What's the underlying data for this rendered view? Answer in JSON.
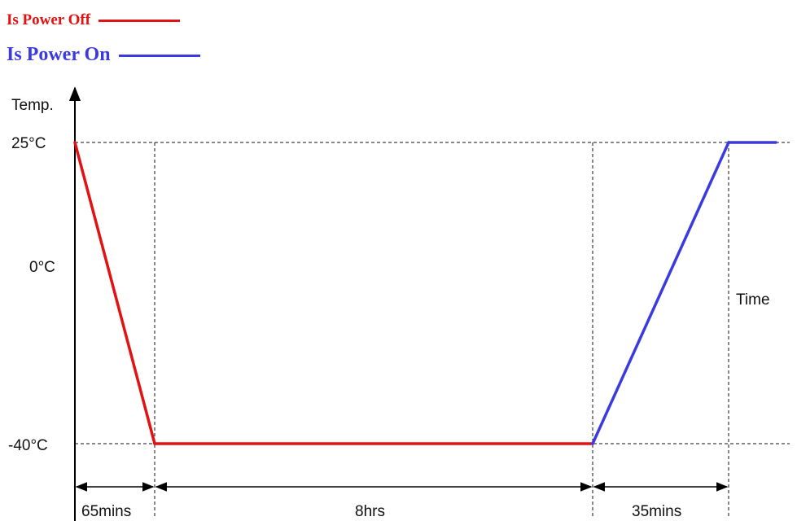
{
  "chart_data": {
    "type": "line",
    "y_label": "Temp.",
    "x_label": "Time",
    "y_ticks": [
      "25°C",
      "0°C",
      "-40°C"
    ],
    "series": [
      {
        "name": "Is Power Off",
        "color": "#e31212",
        "points": [
          {
            "t_min": 0,
            "temp_c": 25
          },
          {
            "t_min": 65,
            "temp_c": -40
          },
          {
            "t_min": 545,
            "temp_c": -40
          }
        ]
      },
      {
        "name": "Is Power On",
        "color": "#3a3ae0",
        "points": [
          {
            "t_min": 545,
            "temp_c": -40
          },
          {
            "t_min": 580,
            "temp_c": 25
          },
          {
            "t_min": 620,
            "temp_c": 25
          }
        ]
      }
    ],
    "intervals": [
      {
        "label": "65mins",
        "from_min": 0,
        "to_min": 65
      },
      {
        "label": "8hrs",
        "from_min": 65,
        "to_min": 545
      },
      {
        "label": "35mins",
        "from_min": 545,
        "to_min": 580
      }
    ]
  }
}
